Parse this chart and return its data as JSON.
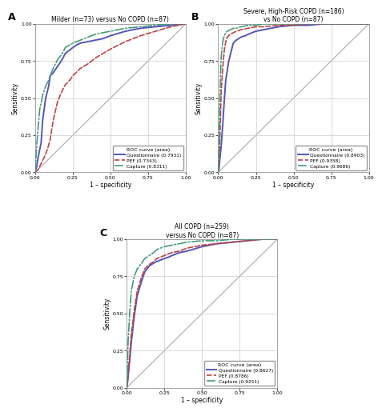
{
  "panels": [
    {
      "label": "A",
      "title": "Milder (n=73) versus No COPD (n=87)",
      "legend_title": "ROC curve (area)",
      "curves": [
        {
          "name": "Questionnaire (0.7931)",
          "color": "#5555bb",
          "linestyle": "solid",
          "lw": 1.4
        },
        {
          "name": "PEF (0.7343)",
          "color": "#bb4444",
          "linestyle": "dashed",
          "lw": 1.2
        },
        {
          "name": "Capture (0.8311)",
          "color": "#44997a",
          "linestyle": "dashdot",
          "lw": 1.2
        }
      ]
    },
    {
      "label": "B",
      "title": "Severe, High-Risk COPD (n=186)\nvs No COPD (n=87)",
      "legend_title": "ROC curve (area)",
      "curves": [
        {
          "name": "Questionnaire (0.8903)",
          "color": "#5555bb",
          "linestyle": "solid",
          "lw": 1.4
        },
        {
          "name": "PEF (0.9358)",
          "color": "#bb4444",
          "linestyle": "dashed",
          "lw": 1.2
        },
        {
          "name": "Capture (0.9686)",
          "color": "#44997a",
          "linestyle": "dashdot",
          "lw": 1.2
        }
      ]
    },
    {
      "label": "C",
      "title": "All COPD (n=259)\nversus No COPD (n=87)",
      "legend_title": "ROC curve (area)",
      "curves": [
        {
          "name": "Questionnaire (0.8627)",
          "color": "#5555bb",
          "linestyle": "solid",
          "lw": 1.4
        },
        {
          "name": "PEF (0.8786)",
          "color": "#bb4444",
          "linestyle": "dashed",
          "lw": 1.2
        },
        {
          "name": "Capture (0.9251)",
          "color": "#44997a",
          "linestyle": "dashdot",
          "lw": 1.2
        }
      ]
    }
  ],
  "bg_color": "#ffffff",
  "grid_color": "#cccccc",
  "axis_label_x": "1 – specificity",
  "axis_label_y": "Sensitivity",
  "tick_vals": [
    0.0,
    0.25,
    0.5,
    0.75,
    1.0
  ],
  "diag_color": "#aaaaaa",
  "ax_facecolor": "#ffffff",
  "spine_color": "#999999"
}
